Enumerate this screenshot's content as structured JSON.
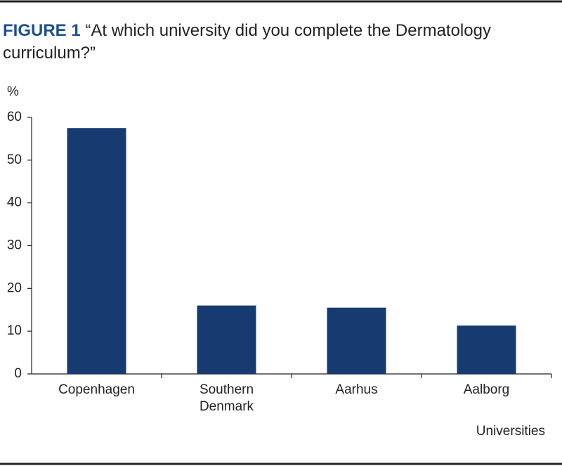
{
  "chart_data": {
    "type": "bar",
    "figure_label": "FIGURE 1",
    "title": "“At which university did you complete the Dermatology curriculum?”",
    "y_label": "%",
    "x_label": "Universities",
    "categories": [
      "Copenhagen",
      "Southern Denmark",
      "Aarhus",
      "Aalborg"
    ],
    "values": [
      57.5,
      16,
      15.5,
      11.3
    ],
    "color": "#173a70",
    "ylim": [
      0,
      60
    ],
    "yticks": [
      0,
      10,
      20,
      30,
      40,
      50,
      60
    ],
    "grid": false
  }
}
